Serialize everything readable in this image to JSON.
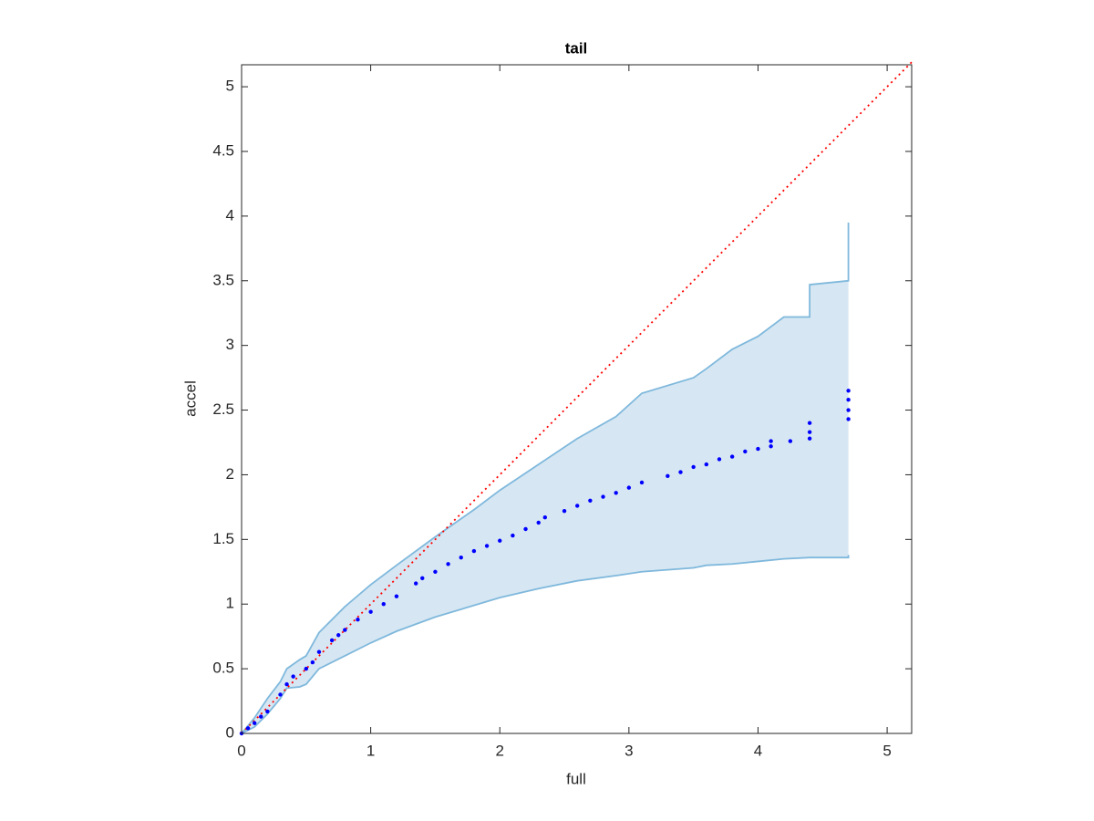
{
  "chart_data": {
    "type": "scatter",
    "title": "tail",
    "x_label": "full",
    "y_label": "accel",
    "xlim": [
      0,
      5.19
    ],
    "ylim": [
      0,
      5.17
    ],
    "xticks": [
      0,
      1,
      2,
      3,
      4,
      5
    ],
    "yticks": [
      0,
      0.5,
      1,
      1.5,
      2,
      2.5,
      3,
      3.5,
      4,
      4.5,
      5
    ],
    "series": [
      {
        "color": "#0000ff",
        "x": [
          0,
          0.05,
          0.1,
          0.15,
          0.2,
          0.3,
          0.35,
          0.4,
          0.5,
          0.55,
          0.6,
          0.7,
          0.75,
          0.8,
          0.9,
          1.0,
          1.1,
          1.2,
          1.35,
          1.4,
          1.5,
          1.6,
          1.7,
          1.8,
          1.9,
          2.0,
          2.1,
          2.2,
          2.3,
          2.35,
          2.5,
          2.6,
          2.7,
          2.8,
          2.9,
          3.0,
          3.1,
          3.3,
          3.4,
          3.5,
          3.6,
          3.7,
          3.8,
          3.9,
          4.0,
          4.1,
          4.1,
          4.25,
          4.4,
          4.4,
          4.4,
          4.7,
          4.7,
          4.7,
          4.7
        ],
        "values": [
          0,
          0.04,
          0.08,
          0.13,
          0.17,
          0.3,
          0.38,
          0.44,
          0.5,
          0.55,
          0.63,
          0.72,
          0.76,
          0.8,
          0.88,
          0.94,
          1.0,
          1.06,
          1.16,
          1.2,
          1.25,
          1.31,
          1.36,
          1.41,
          1.45,
          1.49,
          1.53,
          1.58,
          1.63,
          1.67,
          1.72,
          1.76,
          1.8,
          1.83,
          1.86,
          1.9,
          1.94,
          1.99,
          2.02,
          2.06,
          2.08,
          2.12,
          2.14,
          2.18,
          2.2,
          2.22,
          2.26,
          2.26,
          2.28,
          2.33,
          2.4,
          2.43,
          2.5,
          2.58,
          2.65
        ]
      }
    ],
    "band": {
      "color": "#7fb8dc",
      "fill": "#d6e7f3",
      "x": [
        0,
        0.1,
        0.2,
        0.3,
        0.35,
        0.45,
        0.5,
        0.6,
        0.8,
        1.0,
        1.2,
        1.5,
        1.8,
        2.0,
        2.3,
        2.6,
        2.9,
        3.1,
        3.5,
        3.6,
        3.8,
        4.0,
        4.2,
        4.4,
        4.4,
        4.7,
        4.7
      ],
      "upper": [
        0,
        0.12,
        0.27,
        0.4,
        0.5,
        0.57,
        0.6,
        0.78,
        0.98,
        1.15,
        1.3,
        1.52,
        1.73,
        1.88,
        2.08,
        2.28,
        2.45,
        2.63,
        2.75,
        2.82,
        2.97,
        3.07,
        3.22,
        3.22,
        3.47,
        3.5,
        3.95
      ],
      "lower": [
        0,
        0.05,
        0.15,
        0.27,
        0.35,
        0.36,
        0.38,
        0.5,
        0.6,
        0.7,
        0.79,
        0.9,
        0.99,
        1.05,
        1.12,
        1.18,
        1.22,
        1.25,
        1.28,
        1.3,
        1.31,
        1.33,
        1.35,
        1.36,
        1.36,
        1.36,
        1.38
      ]
    },
    "reference_line": {
      "color": "#ff0000",
      "style": "dotted",
      "x": [
        0,
        5.19
      ],
      "values": [
        0,
        5.19
      ]
    }
  }
}
